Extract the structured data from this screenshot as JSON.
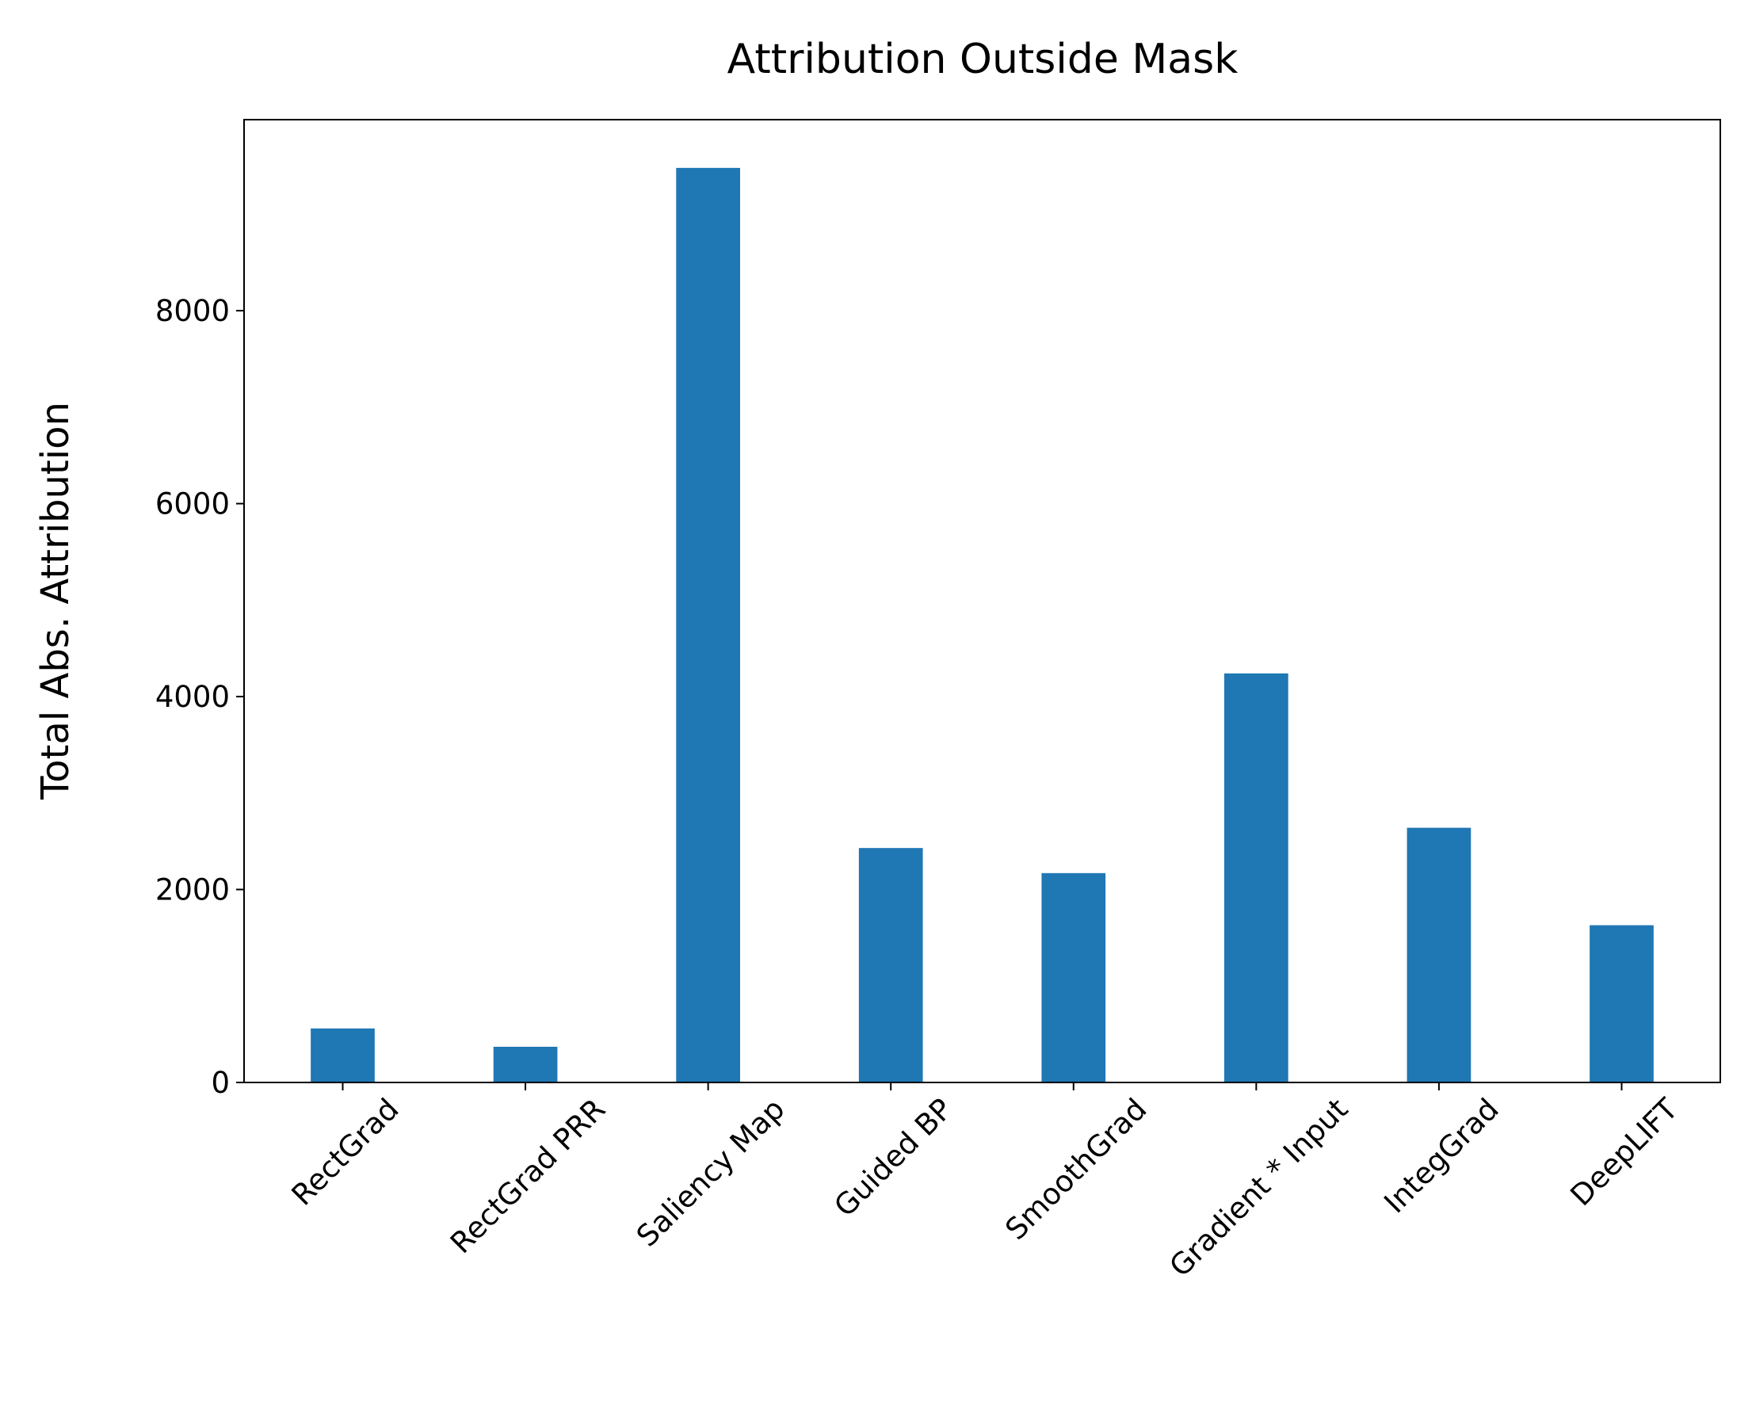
{
  "chart_data": {
    "type": "bar",
    "title": "Attribution Outside Mask",
    "y_label": "Total Abs. Attribution",
    "categories": [
      "RectGrad",
      "RectGrad PRR",
      "Saliency Map",
      "Guided BP",
      "SmoothGrad",
      "Gradient * Input",
      "IntegGrad",
      "DeepLIFT"
    ],
    "values": [
      560,
      370,
      9480,
      2430,
      2170,
      4240,
      2640,
      1630
    ],
    "color": "#1f77b4",
    "ylim": [
      0,
      9980
    ],
    "yticks": [
      0,
      2000,
      4000,
      6000,
      8000
    ],
    "grid": false
  }
}
